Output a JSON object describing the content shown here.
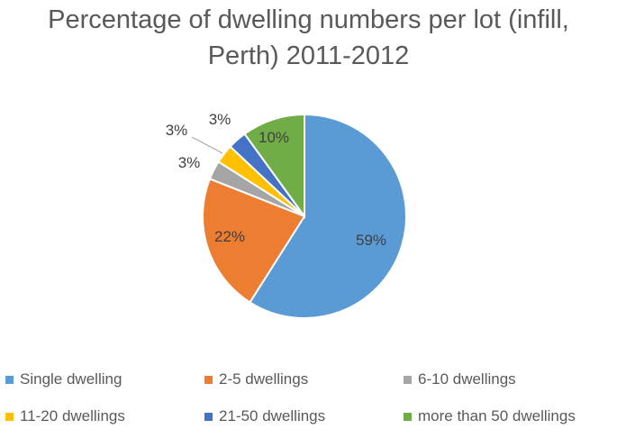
{
  "chart_data": {
    "type": "pie",
    "title": "Percentage of dwelling numbers per lot (infill, Perth) 2011-2012",
    "title_lines": [
      "Percentage of dwelling numbers per lot (infill,",
      "Perth) 2011-2012"
    ],
    "categories": [
      "Single dwelling",
      "2-5 dwellings",
      "6-10 dwellings",
      "11-20 dwellings",
      "21-50 dwellings",
      "more than 50 dwellings"
    ],
    "values": [
      59,
      22,
      3,
      3,
      3,
      10
    ],
    "data_labels": [
      "59%",
      "22%",
      "3%",
      "3%",
      "3%",
      "10%"
    ],
    "colors": [
      "#5B9BD5",
      "#ED7D31",
      "#A5A5A5",
      "#FFC000",
      "#4472C4",
      "#70AD47"
    ],
    "legend_position": "bottom"
  }
}
